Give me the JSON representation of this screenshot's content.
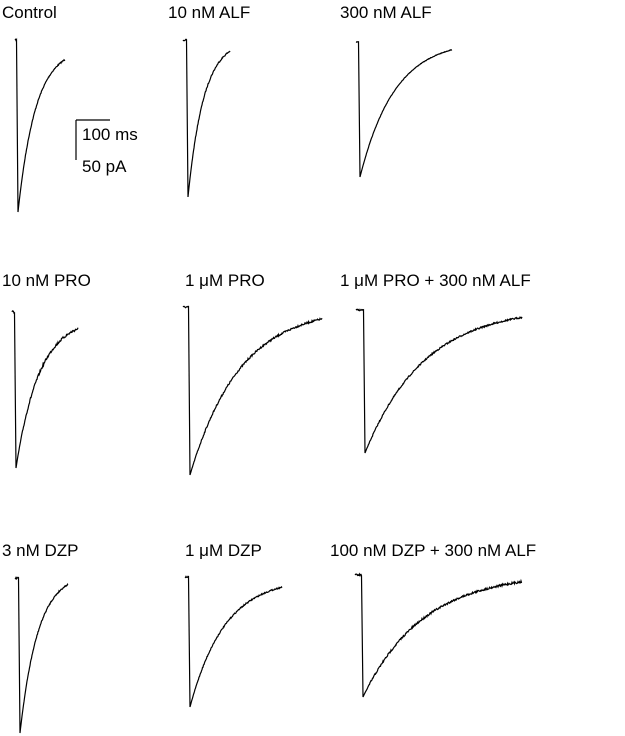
{
  "panels": [
    {
      "label": "Control"
    },
    {
      "label": "10 nM ALF"
    },
    {
      "label": "300 nM ALF"
    },
    {
      "label": "10 nM PRO"
    },
    {
      "label": "1 μM PRO"
    },
    {
      "label": "1 μM PRO + 300 nM ALF"
    },
    {
      "label": "3 nM DZP"
    },
    {
      "label": "1 μM DZP"
    },
    {
      "label": "100 nM DZP + 300 nM ALF"
    }
  ],
  "scale_bar": {
    "time": "100 ms",
    "current": "50 pA"
  }
}
